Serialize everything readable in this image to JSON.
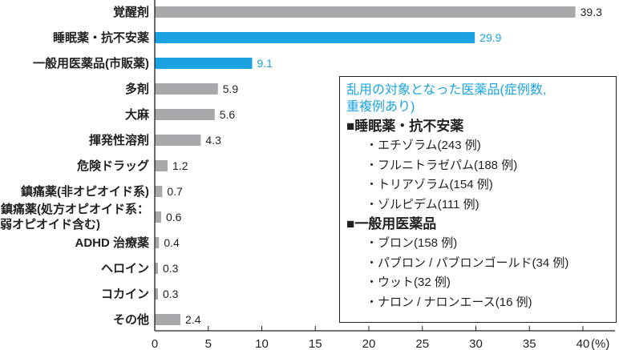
{
  "chart_data": {
    "type": "bar",
    "orientation": "horizontal",
    "categories": [
      "覚醒剤",
      "睡眠薬・抗不安薬",
      "一般用医薬品(市販薬)",
      "多剤",
      "大麻",
      "揮発性溶剤",
      "危険ドラッグ",
      "鎮痛薬(非オピオイド系)",
      "鎮痛薬(処方オピオイド系：弱オピオイド含む)",
      "ADHD 治療薬",
      "ヘロイン",
      "コカイン",
      "その他"
    ],
    "category_lines": [
      [
        "覚醒剤"
      ],
      [
        "睡眠薬・抗不安薬"
      ],
      [
        "一般用医薬品(市販薬)"
      ],
      [
        "多剤"
      ],
      [
        "大麻"
      ],
      [
        "揮発性溶剤"
      ],
      [
        "危険ドラッグ"
      ],
      [
        "鎮痛薬(非オピオイド系)"
      ],
      [
        "鎮痛薬(処方オピオイド系：",
        "弱オピオイド含む)"
      ],
      [
        "ADHD 治療薬"
      ],
      [
        "ヘロイン"
      ],
      [
        "コカイン"
      ],
      [
        "その他"
      ]
    ],
    "values": [
      39.3,
      29.9,
      9.1,
      5.9,
      5.6,
      4.3,
      1.2,
      0.7,
      0.6,
      0.4,
      0.3,
      0.3,
      2.4
    ],
    "value_labels": [
      "39.3",
      "29.9",
      "9.1",
      "5.9",
      "5.6",
      "4.3",
      "1.2",
      "0.7",
      "0.6",
      "0.4",
      "0.3",
      "0.3",
      "2.4"
    ],
    "highlighted": [
      false,
      true,
      true,
      false,
      false,
      false,
      false,
      false,
      false,
      false,
      false,
      false,
      false
    ],
    "xlim": [
      0,
      40
    ],
    "xticks": [
      0,
      5,
      10,
      15,
      20,
      25,
      30,
      35,
      40
    ],
    "xtick_labels": [
      "0",
      "5",
      "10",
      "15",
      "20",
      "25",
      "30",
      "35",
      "40"
    ],
    "xlabel": "(%)",
    "colors": {
      "default": "#a7a9ac",
      "highlight": "#1aa3e0",
      "text": "#231f20"
    },
    "grid": false
  },
  "legend": {
    "title_lines": [
      "乱用の対象となった医薬品(症例数,",
      "重複例あり)"
    ],
    "groups": [
      {
        "label": "■睡眠薬・抗不安薬",
        "items": [
          "・エチゾラム(243 例)",
          "・フルニトラゼパム(188 例)",
          "・トリアゾラム(154 例)",
          "・ゾルピデム(111 例)"
        ]
      },
      {
        "label": "■一般用医薬品",
        "items": [
          "・ブロン(158 例)",
          "・パブロン / パブロンゴールド(34 例)",
          "・ウット(32 例)",
          "・ナロン / ナロンエース(16 例)"
        ]
      }
    ]
  }
}
